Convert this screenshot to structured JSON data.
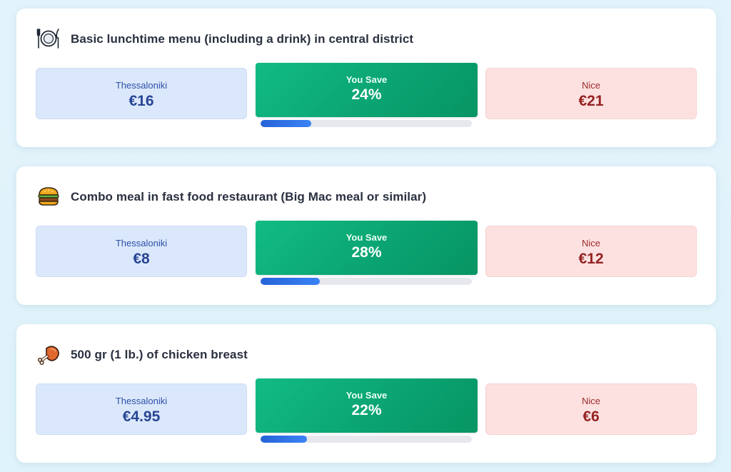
{
  "comparisons": [
    {
      "icon": "plate-cutlery-icon",
      "title": "Basic lunchtime menu (including a drink) in central district",
      "city_a": {
        "name": "Thessaloniki",
        "price": "€16"
      },
      "savings": {
        "label": "You Save",
        "value": "24%",
        "progress": 0.24
      },
      "city_b": {
        "name": "Nice",
        "price": "€21"
      }
    },
    {
      "icon": "burger-icon",
      "title": "Combo meal in fast food restaurant (Big Mac meal or similar)",
      "city_a": {
        "name": "Thessaloniki",
        "price": "€8"
      },
      "savings": {
        "label": "You Save",
        "value": "28%",
        "progress": 0.28
      },
      "city_b": {
        "name": "Nice",
        "price": "€12"
      }
    },
    {
      "icon": "chicken-leg-icon",
      "title": "500 gr (1 lb.) of chicken breast",
      "city_a": {
        "name": "Thessaloniki",
        "price": "€4.95"
      },
      "savings": {
        "label": "You Save",
        "value": "22%",
        "progress": 0.22
      },
      "city_b": {
        "name": "Nice",
        "price": "€6"
      }
    }
  ],
  "colors": {
    "savings_green": "#0fae79",
    "progress_blue": "#2f6fe0",
    "city_a_bg": "#dbe8fc",
    "city_b_bg": "#fde1e1"
  }
}
